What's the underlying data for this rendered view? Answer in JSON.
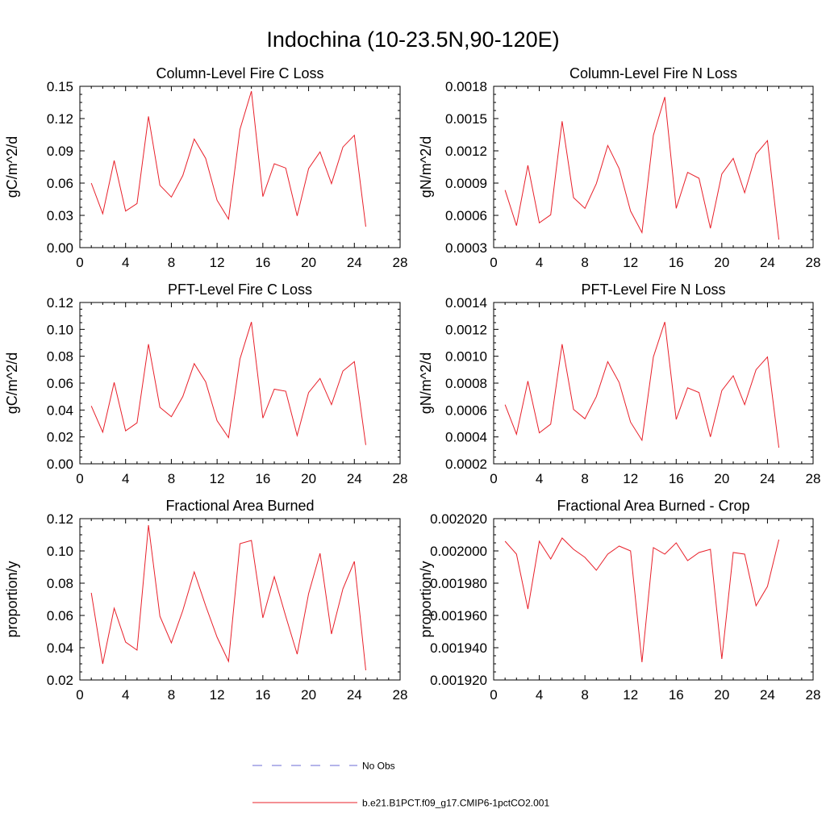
{
  "figure": {
    "title": "Indochina (10-23.5N,90-120E)"
  },
  "legend": {
    "entries": [
      {
        "label": "No Obs",
        "color": "#6b6bd6",
        "style": "dashed"
      },
      {
        "label": "b.e21.B1PCT.f09_g17.CMIP6-1pctCO2.001",
        "color": "#e8202a",
        "style": "solid"
      }
    ]
  },
  "chart_data": [
    {
      "type": "line",
      "title": "Column-Level Fire C Loss",
      "ylabel": "gC/m^2/d",
      "xlim": [
        0,
        28
      ],
      "ylim": [
        0,
        0.15
      ],
      "xticks": [
        0,
        4,
        8,
        12,
        16,
        20,
        24,
        28
      ],
      "yticks": [
        "0.00",
        "0.03",
        "0.06",
        "0.09",
        "0.12",
        "0.15"
      ],
      "x": [
        1,
        2,
        3,
        4,
        5,
        6,
        7,
        8,
        9,
        10,
        11,
        12,
        13,
        14,
        15,
        16,
        17,
        18,
        19,
        20,
        21,
        22,
        23,
        24,
        25
      ],
      "series": [
        {
          "name": "b.e21.B1PCT.f09_g17.CMIP6-1pctCO2.001",
          "color": "#e8202a",
          "values": [
            0.06,
            0.0315,
            0.081,
            0.034,
            0.041,
            0.122,
            0.058,
            0.047,
            0.067,
            0.101,
            0.083,
            0.044,
            0.0265,
            0.11,
            0.1455,
            0.0475,
            0.078,
            0.074,
            0.0295,
            0.0735,
            0.089,
            0.0595,
            0.0935,
            0.1045,
            0.0195
          ]
        }
      ]
    },
    {
      "type": "line",
      "title": "Column-Level Fire N Loss",
      "ylabel": "gN/m^2/d",
      "xlim": [
        0,
        28
      ],
      "ylim": [
        0.0003,
        0.0018
      ],
      "xticks": [
        0,
        4,
        8,
        12,
        16,
        20,
        24,
        28
      ],
      "yticks": [
        "0.0003",
        "0.0006",
        "0.0009",
        "0.0012",
        "0.0015",
        "0.0018"
      ],
      "x": [
        1,
        2,
        3,
        4,
        5,
        6,
        7,
        8,
        9,
        10,
        11,
        12,
        13,
        14,
        15,
        16,
        17,
        18,
        19,
        20,
        21,
        22,
        23,
        24,
        25
      ],
      "series": [
        {
          "name": "b.e21.B1PCT.f09_g17.CMIP6-1pctCO2.001",
          "color": "#e8202a",
          "values": [
            0.000835,
            0.000505,
            0.001065,
            0.00053,
            0.000605,
            0.001475,
            0.000765,
            0.000665,
            0.000895,
            0.00125,
            0.001035,
            0.00064,
            0.00044,
            0.001345,
            0.0017,
            0.000665,
            0.001,
            0.000945,
            0.00048,
            0.000985,
            0.00113,
            0.00081,
            0.00117,
            0.001295,
            0.000375
          ]
        }
      ]
    },
    {
      "type": "line",
      "title": "PFT-Level Fire C Loss",
      "ylabel": "gC/m^2/d",
      "xlim": [
        0,
        28
      ],
      "ylim": [
        0,
        0.12
      ],
      "xticks": [
        0,
        4,
        8,
        12,
        16,
        20,
        24,
        28
      ],
      "yticks": [
        "0.00",
        "0.02",
        "0.04",
        "0.06",
        "0.08",
        "0.10",
        "0.12"
      ],
      "x": [
        1,
        2,
        3,
        4,
        5,
        6,
        7,
        8,
        9,
        10,
        11,
        12,
        13,
        14,
        15,
        16,
        17,
        18,
        19,
        20,
        21,
        22,
        23,
        24,
        25
      ],
      "series": [
        {
          "name": "b.e21.B1PCT.f09_g17.CMIP6-1pctCO2.001",
          "color": "#e8202a",
          "values": [
            0.043,
            0.0235,
            0.0605,
            0.0245,
            0.0305,
            0.089,
            0.042,
            0.035,
            0.05,
            0.0745,
            0.061,
            0.032,
            0.0195,
            0.078,
            0.1055,
            0.034,
            0.0555,
            0.054,
            0.021,
            0.053,
            0.0635,
            0.044,
            0.069,
            0.076,
            0.014
          ]
        }
      ]
    },
    {
      "type": "line",
      "title": "PFT-Level Fire N Loss",
      "ylabel": "gN/m^2/d",
      "xlim": [
        0,
        28
      ],
      "ylim": [
        0.0002,
        0.0014
      ],
      "xticks": [
        0,
        4,
        8,
        12,
        16,
        20,
        24,
        28
      ],
      "yticks": [
        "0.0002",
        "0.0004",
        "0.0006",
        "0.0008",
        "0.0010",
        "0.0012",
        "0.0014"
      ],
      "x": [
        1,
        2,
        3,
        4,
        5,
        6,
        7,
        8,
        9,
        10,
        11,
        12,
        13,
        14,
        15,
        16,
        17,
        18,
        19,
        20,
        21,
        22,
        23,
        24,
        25
      ],
      "series": [
        {
          "name": "b.e21.B1PCT.f09_g17.CMIP6-1pctCO2.001",
          "color": "#e8202a",
          "values": [
            0.00064,
            0.00042,
            0.000815,
            0.00043,
            0.000495,
            0.00109,
            0.000605,
            0.000535,
            0.0007,
            0.00096,
            0.000805,
            0.00051,
            0.000375,
            0.000995,
            0.001255,
            0.00053,
            0.000765,
            0.00073,
            0.0004,
            0.000745,
            0.000855,
            0.00064,
            0.0009,
            0.000995,
            0.00032
          ]
        }
      ]
    },
    {
      "type": "line",
      "title": "Fractional Area Burned",
      "ylabel": "proportion/y",
      "xlim": [
        0,
        28
      ],
      "ylim": [
        0.02,
        0.12
      ],
      "xticks": [
        0,
        4,
        8,
        12,
        16,
        20,
        24,
        28
      ],
      "yticks": [
        "0.02",
        "0.04",
        "0.06",
        "0.08",
        "0.10",
        "0.12"
      ],
      "x": [
        1,
        2,
        3,
        4,
        5,
        6,
        7,
        8,
        9,
        10,
        11,
        12,
        13,
        14,
        15,
        16,
        17,
        18,
        19,
        20,
        21,
        22,
        23,
        24,
        25
      ],
      "series": [
        {
          "name": "b.e21.B1PCT.f09_g17.CMIP6-1pctCO2.001",
          "color": "#e8202a",
          "values": [
            0.074,
            0.03,
            0.0645,
            0.0435,
            0.0385,
            0.116,
            0.0595,
            0.043,
            0.063,
            0.087,
            0.066,
            0.0465,
            0.0315,
            0.1045,
            0.1065,
            0.0585,
            0.084,
            0.0595,
            0.036,
            0.0735,
            0.0985,
            0.0485,
            0.0765,
            0.0935,
            0.026
          ]
        }
      ]
    },
    {
      "type": "line",
      "title": "Fractional Area Burned - Crop",
      "ylabel": "proportion/y",
      "xlim": [
        0,
        28
      ],
      "ylim": [
        0.00192,
        0.00202
      ],
      "xticks": [
        0,
        4,
        8,
        12,
        16,
        20,
        24,
        28
      ],
      "yticks": [
        "0.001920",
        "0.001940",
        "0.001960",
        "0.001980",
        "0.002000",
        "0.002020"
      ],
      "x": [
        1,
        2,
        3,
        4,
        5,
        6,
        7,
        8,
        9,
        10,
        11,
        12,
        13,
        14,
        15,
        16,
        17,
        18,
        19,
        20,
        21,
        22,
        23,
        24,
        25
      ],
      "series": [
        {
          "name": "b.e21.B1PCT.f09_g17.CMIP6-1pctCO2.001",
          "color": "#e8202a",
          "values": [
            0.002006,
            0.001998,
            0.001964,
            0.002006,
            0.001995,
            0.002008,
            0.002001,
            0.001996,
            0.001988,
            0.001998,
            0.002003,
            0.002,
            0.001931,
            0.002002,
            0.001998,
            0.002005,
            0.001994,
            0.001999,
            0.002001,
            0.001933,
            0.001999,
            0.001998,
            0.001966,
            0.001978,
            0.002007
          ]
        }
      ]
    }
  ]
}
